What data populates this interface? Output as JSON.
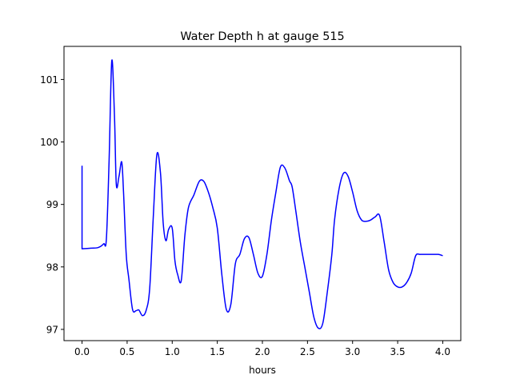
{
  "chart_data": {
    "type": "line",
    "title": "Water Depth h at gauge 515",
    "xlabel": "hours",
    "ylabel": "",
    "xlim": [
      -0.2,
      4.2
    ],
    "ylim": [
      96.82,
      101.53
    ],
    "xticks": [
      0.0,
      0.5,
      1.0,
      1.5,
      2.0,
      2.5,
      3.0,
      3.5,
      4.0
    ],
    "xtick_labels": [
      "0.0",
      "0.5",
      "1.0",
      "1.5",
      "2.0",
      "2.5",
      "3.0",
      "3.5",
      "4.0"
    ],
    "yticks": [
      97,
      98,
      99,
      100,
      101
    ],
    "ytick_labels": [
      "97",
      "98",
      "99",
      "100",
      "101"
    ],
    "grid": false,
    "series": [
      {
        "color": "#0000ff",
        "x": [
          0.0,
          0.0,
          0.1,
          0.18,
          0.24,
          0.27,
          0.3,
          0.33,
          0.36,
          0.38,
          0.41,
          0.44,
          0.46,
          0.49,
          0.52,
          0.56,
          0.6,
          0.63,
          0.67,
          0.71,
          0.75,
          0.79,
          0.83,
          0.87,
          0.9,
          0.93,
          0.96,
          1.0,
          1.03,
          1.06,
          1.1,
          1.14,
          1.18,
          1.24,
          1.3,
          1.35,
          1.4,
          1.45,
          1.5,
          1.55,
          1.6,
          1.65,
          1.7,
          1.75,
          1.8,
          1.85,
          1.9,
          1.95,
          2.0,
          2.05,
          2.1,
          2.15,
          2.2,
          2.25,
          2.3,
          2.33,
          2.37,
          2.42,
          2.47,
          2.52,
          2.57,
          2.62,
          2.67,
          2.72,
          2.77,
          2.8,
          2.85,
          2.9,
          2.95,
          3.0,
          3.05,
          3.1,
          3.15,
          3.2,
          3.25,
          3.3,
          3.35,
          3.4,
          3.45,
          3.5,
          3.55,
          3.6,
          3.65,
          3.7,
          3.75,
          3.8,
          3.85,
          3.9,
          3.95,
          4.0
        ],
        "y": [
          99.62,
          98.29,
          98.3,
          98.31,
          98.37,
          98.45,
          99.7,
          101.3,
          100.4,
          99.32,
          99.45,
          99.68,
          99.2,
          98.2,
          97.8,
          97.32,
          97.3,
          97.31,
          97.22,
          97.3,
          97.65,
          98.8,
          99.8,
          99.5,
          98.7,
          98.42,
          98.6,
          98.62,
          98.1,
          97.88,
          97.78,
          98.5,
          98.95,
          99.15,
          99.37,
          99.37,
          99.2,
          98.95,
          98.62,
          97.88,
          97.32,
          97.4,
          98.05,
          98.2,
          98.45,
          98.47,
          98.2,
          97.9,
          97.85,
          98.2,
          98.75,
          99.2,
          99.6,
          99.58,
          99.38,
          99.28,
          98.9,
          98.4,
          98.0,
          97.6,
          97.2,
          97.02,
          97.1,
          97.6,
          98.2,
          98.75,
          99.25,
          99.5,
          99.45,
          99.2,
          98.9,
          98.75,
          98.73,
          98.75,
          98.8,
          98.82,
          98.4,
          97.95,
          97.75,
          97.68,
          97.68,
          97.75,
          97.9,
          98.18,
          98.2,
          98.2,
          98.2,
          98.2,
          98.2,
          98.18
        ]
      }
    ]
  }
}
